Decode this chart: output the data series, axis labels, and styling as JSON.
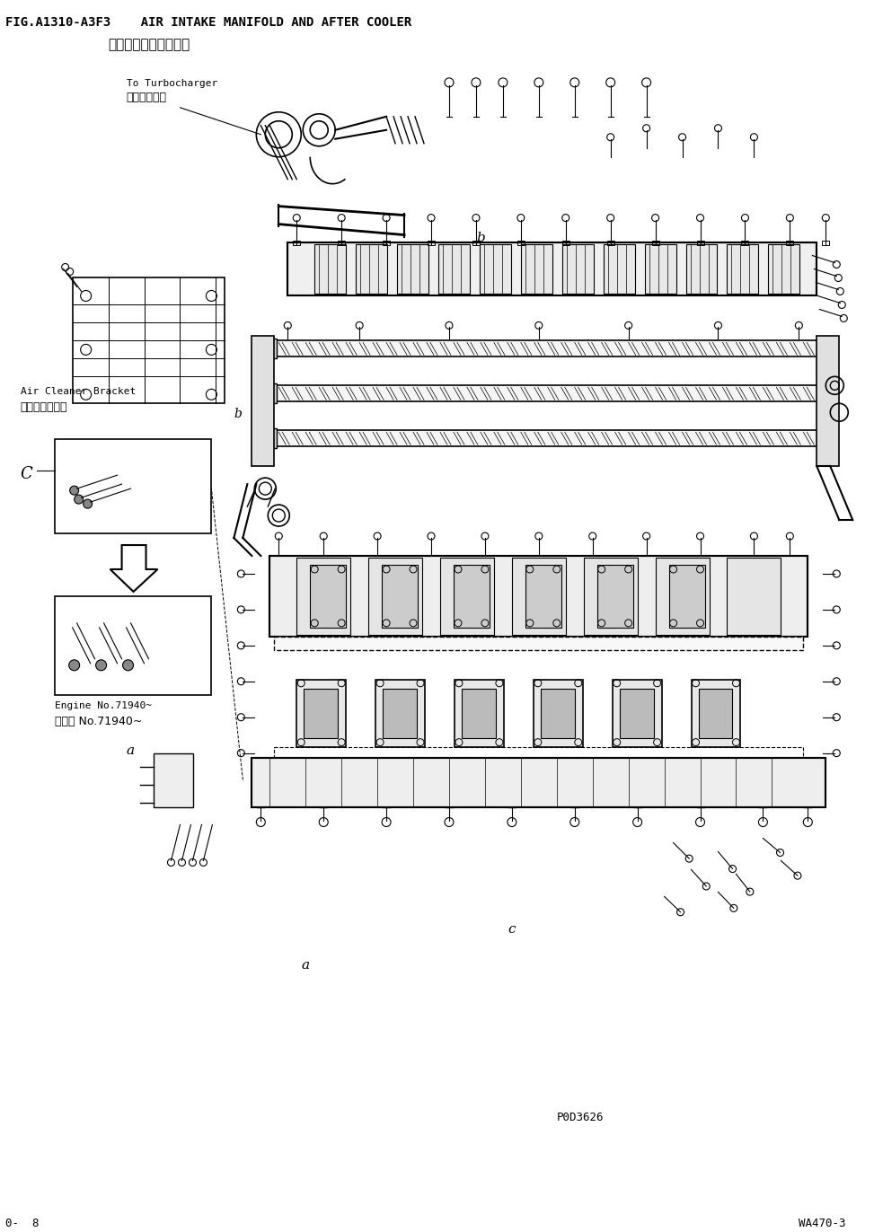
{
  "title_line1": "FIG.A1310-A3F3    AIR INTAKE MANIFOLD AND AFTER COOLER",
  "title_line2": "空气进气岐管和中冷器",
  "footer_left": "0-  8",
  "footer_right": "WA470-3",
  "watermark": "P0D3626",
  "bg_color": "#ffffff",
  "line_color": "#000000",
  "ann_turbo_en": "To Turbocharger",
  "ann_turbo_cn": "至涉轮增压器",
  "ann_bracket_en": "Air Cleaner Bracket",
  "ann_bracket_cn": "空气过清器支架",
  "ann_engine_en": "Engine No.71940~",
  "ann_engine_cn": "发动机 No.71940~"
}
